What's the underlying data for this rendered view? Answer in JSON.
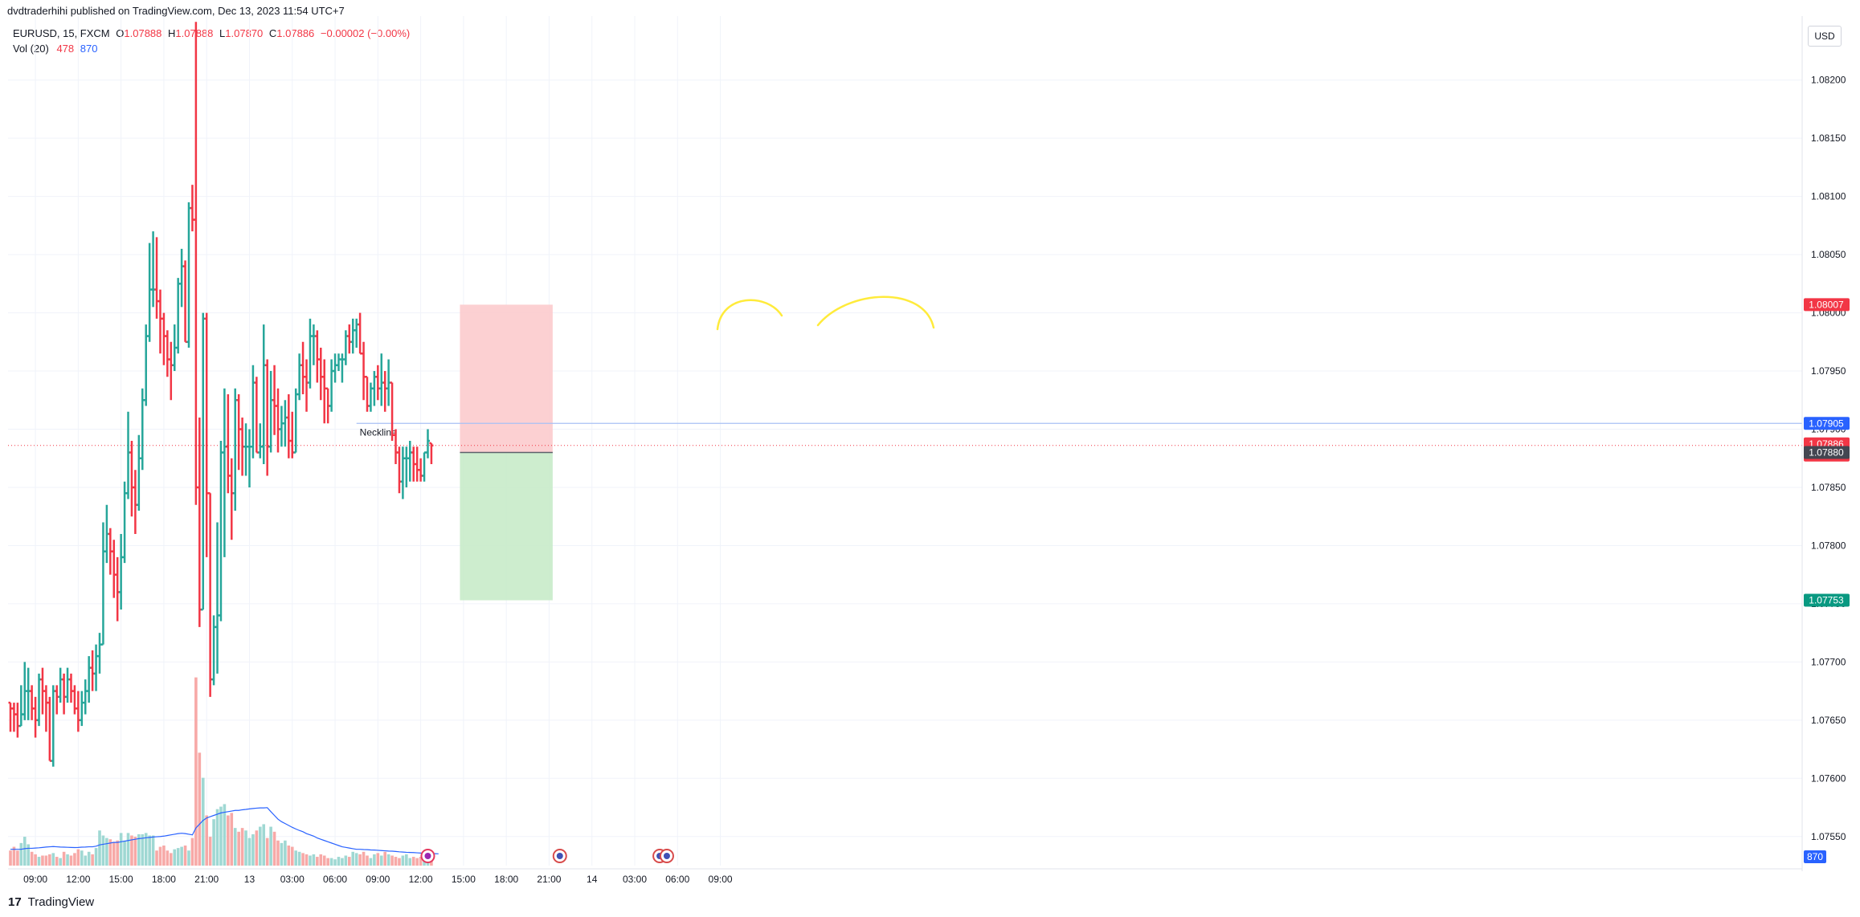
{
  "header": {
    "published_by": "dvdtraderhihi published on TradingView.com, Dec 13, 2023 11:54 UTC+7",
    "symbol_line": "EURUSD, 15, FXCM",
    "ohlc": {
      "o_label": "O",
      "o": "1.07888",
      "h_label": "H",
      "h": "1.07888",
      "l_label": "L",
      "l": "1.07870",
      "c_label": "C",
      "c": "1.07886",
      "change": "−0.00002 (−0.00%)"
    },
    "vol_label": "Vol (20)",
    "vol_value_red": "478",
    "vol_value_blue": "870",
    "currency_button": "USD"
  },
  "footer": {
    "logo": "17",
    "brand": "TradingView"
  },
  "colors": {
    "up": "#26a69a",
    "down": "#f23645",
    "vol_up": "#9fd8d3",
    "vol_down": "#f7a9a7",
    "vol_ma": "#2962ff",
    "stop_zone": "#fccbcd",
    "target_zone": "#c8ebc9",
    "annotation": "#ffeb3b",
    "grid": "#f0f3fa"
  },
  "chart_data": {
    "type": "ohlc-bar",
    "symbol": "EURUSD",
    "interval": "15",
    "ylim": [
      1.07525,
      1.08255
    ],
    "y_ticks": [
      "1.08200",
      "1.08150",
      "1.08100",
      "1.08050",
      "1.08000",
      "1.07950",
      "1.07900",
      "1.07850",
      "1.07800",
      "1.07750",
      "1.07700",
      "1.07650",
      "1.07600",
      "1.07550"
    ],
    "x_ticks": [
      {
        "label": "09:00",
        "bar": 7
      },
      {
        "label": "12:00",
        "bar": 19
      },
      {
        "label": "15:00",
        "bar": 31
      },
      {
        "label": "18:00",
        "bar": 43
      },
      {
        "label": "21:00",
        "bar": 55
      },
      {
        "label": "13",
        "bar": 67
      },
      {
        "label": "03:00",
        "bar": 79
      },
      {
        "label": "06:00",
        "bar": 91
      },
      {
        "label": "09:00",
        "bar": 103
      },
      {
        "label": "12:00",
        "bar": 115
      },
      {
        "label": "15:00",
        "bar": 127
      },
      {
        "label": "18:00",
        "bar": 139
      },
      {
        "label": "21:00",
        "bar": 151
      },
      {
        "label": "14",
        "bar": 163
      },
      {
        "label": "03:00",
        "bar": 175
      },
      {
        "label": "06:00",
        "bar": 187
      },
      {
        "label": "09:00",
        "bar": 199
      }
    ],
    "bars": [
      [
        1.07665,
        1.07665,
        1.0764,
        1.0766
      ],
      [
        1.0766,
        1.07665,
        1.0764,
        1.07655
      ],
      [
        1.07655,
        1.07665,
        1.07635,
        1.07645
      ],
      [
        1.07645,
        1.0768,
        1.07645,
        1.07655
      ],
      [
        1.07655,
        1.077,
        1.0765,
        1.07675
      ],
      [
        1.07675,
        1.07695,
        1.0765,
        1.07675
      ],
      [
        1.07675,
        1.0768,
        1.0765,
        1.0766
      ],
      [
        1.0766,
        1.0767,
        1.07635,
        1.0765
      ],
      [
        1.0765,
        1.0769,
        1.07645,
        1.07685
      ],
      [
        1.07685,
        1.07695,
        1.07655,
        1.07675
      ],
      [
        1.07675,
        1.0768,
        1.0764,
        1.07665
      ],
      [
        1.07665,
        1.0767,
        1.07615,
        1.07615
      ],
      [
        1.07615,
        1.0768,
        1.0761,
        1.07675
      ],
      [
        1.07675,
        1.0768,
        1.07655,
        1.0767
      ],
      [
        1.0767,
        1.07695,
        1.07665,
        1.07685
      ],
      [
        1.07685,
        1.0769,
        1.07655,
        1.0767
      ],
      [
        1.0767,
        1.07695,
        1.07665,
        1.07685
      ],
      [
        1.07685,
        1.0769,
        1.07665,
        1.07675
      ],
      [
        1.07675,
        1.0768,
        1.07655,
        1.0766
      ],
      [
        1.0766,
        1.07675,
        1.0764,
        1.0765
      ],
      [
        1.0765,
        1.07675,
        1.07645,
        1.07665
      ],
      [
        1.07665,
        1.07685,
        1.07655,
        1.07675
      ],
      [
        1.07675,
        1.07705,
        1.07665,
        1.07695
      ],
      [
        1.07695,
        1.0771,
        1.07675,
        1.0769
      ],
      [
        1.0769,
        1.07715,
        1.07675,
        1.07705
      ],
      [
        1.07705,
        1.07725,
        1.0769,
        1.07715
      ],
      [
        1.07715,
        1.0782,
        1.07715,
        1.07795
      ],
      [
        1.07795,
        1.07835,
        1.07785,
        1.0781
      ],
      [
        1.0781,
        1.07815,
        1.07775,
        1.07795
      ],
      [
        1.07795,
        1.07805,
        1.07755,
        1.07775
      ],
      [
        1.07775,
        1.0779,
        1.07735,
        1.0776
      ],
      [
        1.0776,
        1.0781,
        1.07745,
        1.0779
      ],
      [
        1.0779,
        1.07855,
        1.07785,
        1.07845
      ],
      [
        1.07845,
        1.07915,
        1.0784,
        1.0788
      ],
      [
        1.0788,
        1.0789,
        1.07825,
        1.0785
      ],
      [
        1.0785,
        1.07865,
        1.0781,
        1.07835
      ],
      [
        1.07835,
        1.07895,
        1.0783,
        1.07875
      ],
      [
        1.07875,
        1.07935,
        1.07865,
        1.07925
      ],
      [
        1.07925,
        1.0799,
        1.0792,
        1.0798
      ],
      [
        1.0798,
        1.0806,
        1.07975,
        1.0802
      ],
      [
        1.0802,
        1.0807,
        1.08005,
        1.0802
      ],
      [
        1.0802,
        1.08065,
        1.07995,
        1.0801
      ],
      [
        1.0801,
        1.0802,
        1.07965,
        1.07995
      ],
      [
        1.07995,
        1.08,
        1.07955,
        1.0798
      ],
      [
        1.0798,
        1.07985,
        1.07945,
        1.0796
      ],
      [
        1.0796,
        1.07975,
        1.07925,
        1.07955
      ],
      [
        1.07955,
        1.0799,
        1.0795,
        1.0797
      ],
      [
        1.0797,
        1.0803,
        1.07965,
        1.08025
      ],
      [
        1.08025,
        1.08055,
        1.08005,
        1.0804
      ],
      [
        1.0804,
        1.08045,
        1.07975,
        1.07975
      ],
      [
        1.07975,
        1.08095,
        1.0797,
        1.0809
      ],
      [
        1.0809,
        1.0811,
        1.0807,
        1.0808
      ],
      [
        1.0808,
        1.0825,
        1.07835,
        1.0785
      ],
      [
        1.0785,
        1.0791,
        1.0773,
        1.07745
      ],
      [
        1.07745,
        1.08,
        1.07745,
        1.07995
      ],
      [
        1.07995,
        1.08,
        1.0779,
        1.07845
      ],
      [
        1.07845,
        1.07845,
        1.0767,
        1.07685
      ],
      [
        1.07685,
        1.0774,
        1.0768,
        1.0773
      ],
      [
        1.0773,
        1.0782,
        1.0769,
        1.0774
      ],
      [
        1.0774,
        1.0789,
        1.07735,
        1.0788
      ],
      [
        1.0788,
        1.07935,
        1.0779,
        1.07885
      ],
      [
        1.07885,
        1.0793,
        1.07845,
        1.0786
      ],
      [
        1.0786,
        1.07875,
        1.07805,
        1.07845
      ],
      [
        1.07845,
        1.07935,
        1.0783,
        1.07925
      ],
      [
        1.07925,
        1.0793,
        1.07865,
        1.079
      ],
      [
        1.079,
        1.0791,
        1.0786,
        1.07885
      ],
      [
        1.07885,
        1.07905,
        1.0786,
        1.07885
      ],
      [
        1.07885,
        1.079,
        1.0785,
        1.07885
      ],
      [
        1.07885,
        1.07955,
        1.07875,
        1.0794
      ],
      [
        1.0794,
        1.07945,
        1.0788,
        1.0788
      ],
      [
        1.0788,
        1.07905,
        1.07875,
        1.07885
      ],
      [
        1.07885,
        1.0799,
        1.0787,
        1.07955
      ],
      [
        1.07955,
        1.0796,
        1.0786,
        1.07885
      ],
      [
        1.07885,
        1.0795,
        1.0788,
        1.07925
      ],
      [
        1.07925,
        1.07955,
        1.07895,
        1.0792
      ],
      [
        1.0792,
        1.07935,
        1.0788,
        1.079
      ],
      [
        1.079,
        1.0792,
        1.07885,
        1.07905
      ],
      [
        1.07905,
        1.07925,
        1.07885,
        1.0791
      ],
      [
        1.0791,
        1.0793,
        1.07875,
        1.0789
      ],
      [
        1.0789,
        1.07915,
        1.07875,
        1.0788
      ],
      [
        1.0788,
        1.07935,
        1.0788,
        1.0793
      ],
      [
        1.0793,
        1.07965,
        1.07925,
        1.07955
      ],
      [
        1.07955,
        1.07975,
        1.0793,
        1.07945
      ],
      [
        1.07945,
        1.0796,
        1.07915,
        1.0794
      ],
      [
        1.0794,
        1.07995,
        1.07935,
        1.0798
      ],
      [
        1.0798,
        1.0799,
        1.07955,
        1.0798
      ],
      [
        1.0798,
        1.07985,
        1.0794,
        1.0796
      ],
      [
        1.0796,
        1.0797,
        1.07925,
        1.07945
      ],
      [
        1.07945,
        1.0796,
        1.07905,
        1.07935
      ],
      [
        1.07935,
        1.07935,
        1.07905,
        1.0792
      ],
      [
        1.0792,
        1.0796,
        1.07915,
        1.0795
      ],
      [
        1.0795,
        1.07965,
        1.0794,
        1.07955
      ],
      [
        1.07955,
        1.07965,
        1.0795,
        1.0796
      ],
      [
        1.0796,
        1.07965,
        1.0794,
        1.0796
      ],
      [
        1.0796,
        1.07985,
        1.07955,
        1.0798
      ],
      [
        1.0798,
        1.0799,
        1.07965,
        1.07975
      ],
      [
        1.07975,
        1.07995,
        1.07965,
        1.07985
      ],
      [
        1.07985,
        1.07995,
        1.0797,
        1.0799
      ],
      [
        1.0799,
        1.08,
        1.07965,
        1.07965
      ],
      [
        1.07965,
        1.07975,
        1.07925,
        1.07945
      ],
      [
        1.07945,
        1.07945,
        1.07915,
        1.0792
      ],
      [
        1.0792,
        1.0794,
        1.07915,
        1.07935
      ],
      [
        1.07935,
        1.0795,
        1.0792,
        1.07945
      ],
      [
        1.07945,
        1.07955,
        1.07925,
        1.07935
      ],
      [
        1.07935,
        1.07965,
        1.0792,
        1.0794
      ],
      [
        1.0794,
        1.0795,
        1.07915,
        1.07935
      ],
      [
        1.07935,
        1.0796,
        1.0792,
        1.0794
      ],
      [
        1.0794,
        1.0794,
        1.0789,
        1.07895
      ],
      [
        1.07895,
        1.079,
        1.0787,
        1.0788
      ],
      [
        1.0788,
        1.07885,
        1.07845,
        1.07855
      ],
      [
        1.07855,
        1.07885,
        1.0784,
        1.07875
      ],
      [
        1.07875,
        1.07885,
        1.0785,
        1.07875
      ],
      [
        1.07875,
        1.0789,
        1.07855,
        1.0788
      ],
      [
        1.0788,
        1.07885,
        1.07855,
        1.0787
      ],
      [
        1.0787,
        1.07885,
        1.07855,
        1.07865
      ],
      [
        1.07865,
        1.07875,
        1.07855,
        1.0786
      ],
      [
        1.0786,
        1.0788,
        1.07855,
        1.0788
      ],
      [
        1.0788,
        1.079,
        1.07875,
        1.0789
      ],
      [
        1.07888,
        1.07888,
        1.0787,
        1.07886
      ]
    ],
    "volume": {
      "values": [
        120,
        150,
        120,
        180,
        230,
        170,
        110,
        90,
        70,
        80,
        80,
        90,
        100,
        70,
        60,
        110,
        90,
        80,
        100,
        130,
        120,
        80,
        110,
        90,
        140,
        280,
        240,
        220,
        210,
        190,
        200,
        260,
        200,
        260,
        240,
        230,
        250,
        250,
        260,
        240,
        240,
        120,
        150,
        160,
        120,
        100,
        130,
        140,
        150,
        160,
        120,
        220,
        1500,
        900,
        700,
        400,
        230,
        370,
        450,
        470,
        490,
        400,
        420,
        300,
        270,
        300,
        280,
        220,
        250,
        280,
        310,
        330,
        220,
        310,
        270,
        200,
        180,
        200,
        160,
        150,
        120,
        110,
        100,
        90,
        80,
        90,
        70,
        90,
        80,
        60,
        60,
        50,
        70,
        60,
        80,
        70,
        110,
        100,
        90,
        110,
        80,
        60,
        90,
        100,
        80,
        110,
        90,
        80,
        70,
        60,
        80,
        90,
        60,
        70,
        60,
        70,
        90,
        80,
        100,
        60,
        70
      ],
      "ma_values": [
        130,
        130,
        130,
        130,
        135,
        138,
        138,
        140,
        142,
        145,
        148,
        150,
        152,
        150,
        148,
        147,
        146,
        145,
        144,
        145,
        147,
        148,
        150,
        150,
        155,
        165,
        170,
        175,
        180,
        185,
        185,
        190,
        195,
        200,
        205,
        210,
        215,
        218,
        222,
        225,
        228,
        230,
        232,
        235,
        240,
        245,
        250,
        255,
        258,
        255,
        250,
        245,
        300,
        330,
        360,
        380,
        390,
        400,
        410,
        420,
        425,
        430,
        435,
        440,
        440,
        445,
        448,
        452,
        455,
        458,
        460,
        460,
        462,
        430,
        400,
        370,
        350,
        335,
        320,
        305,
        292,
        280,
        270,
        255,
        245,
        235,
        220,
        210,
        200,
        190,
        180,
        170,
        160,
        150,
        145,
        140,
        135,
        130,
        130,
        128,
        127,
        125,
        124,
        122,
        120,
        118,
        116,
        115,
        113,
        110,
        108,
        106,
        105,
        104,
        102,
        100,
        100,
        98,
        96,
        95,
        94
      ],
      "ylim": [
        0,
        1600
      ]
    },
    "current_price": 1.07886,
    "countdown": "05:43",
    "price_labels": [
      {
        "value": 1.08007,
        "text": "1.08007",
        "color": "#f23645"
      },
      {
        "value": 1.07905,
        "text": "1.07905",
        "color": "#2962ff"
      },
      {
        "value": 1.07886,
        "text": "1.07886",
        "color": "#f23645"
      },
      {
        "value": 1.0788,
        "text": "1.07880",
        "color": "#434651"
      },
      {
        "value": 1.07753,
        "text": "1.07753",
        "color": "#089981"
      }
    ],
    "neckline": {
      "value": 1.07905,
      "label": "Neckline",
      "from_bar": 97,
      "to_bar": 210
    },
    "position": {
      "type": "short",
      "start_bar": 126,
      "end_bar": 152,
      "entry": 1.0788,
      "stop": 1.08007,
      "target": 1.07753
    },
    "volume_badge": "870"
  }
}
